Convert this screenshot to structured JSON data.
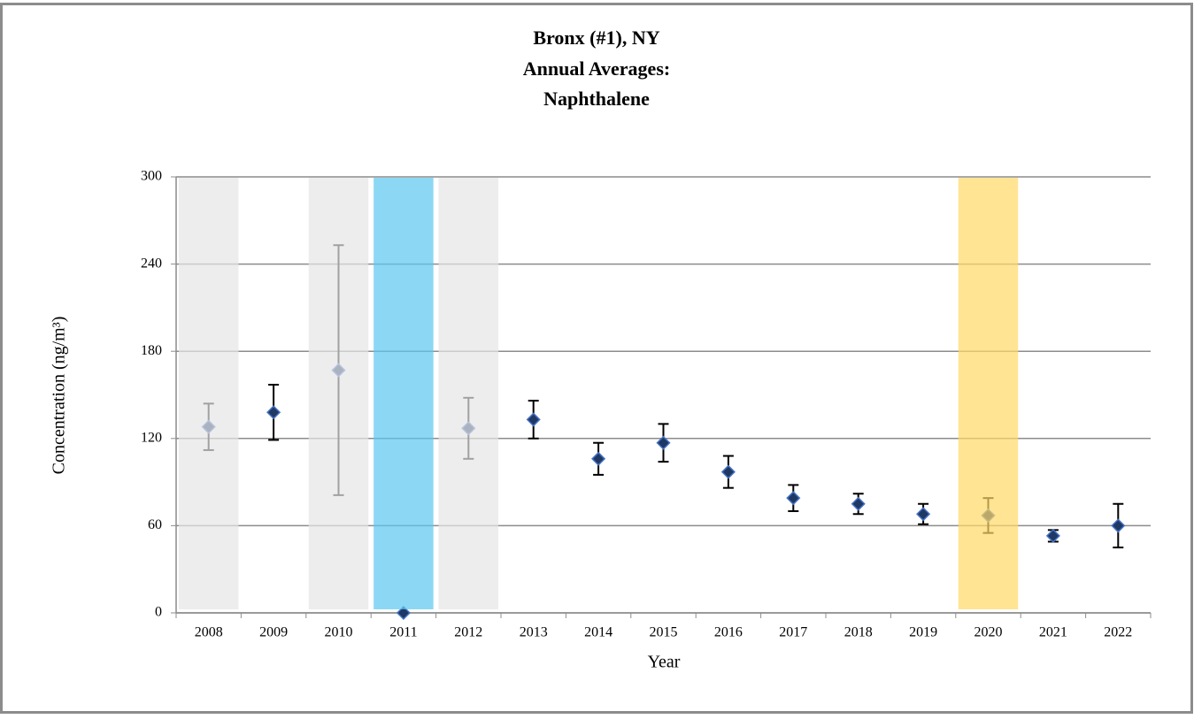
{
  "chart_data": {
    "type": "scatter",
    "title": [
      "Bronx (#1), NY",
      "Annual Averages:",
      "Naphthalene"
    ],
    "x_label": "Year",
    "y_label": "Concentration (ng/m³)",
    "categories": [
      "2008",
      "2009",
      "2010",
      "2011",
      "2012",
      "2013",
      "2014",
      "2015",
      "2016",
      "2017",
      "2018",
      "2019",
      "2020",
      "2021",
      "2022"
    ],
    "values": [
      128,
      138,
      167,
      0,
      127,
      133,
      106,
      117,
      97,
      79,
      75,
      68,
      67,
      53,
      60
    ],
    "errors": [
      16,
      19,
      86,
      null,
      21,
      13,
      11,
      13,
      11,
      9,
      7,
      7,
      12,
      4,
      15
    ],
    "color": "#1f3864",
    "edge_color": "#4472c4",
    "error_color": "#000000",
    "band_colors": [
      "#e6e6e6",
      null,
      "#e6e6e6",
      "#5bc8f0",
      "#e6e6e6",
      null,
      null,
      null,
      null,
      null,
      null,
      null,
      "#ffd966",
      null,
      null
    ],
    "ylim": [
      0,
      300
    ],
    "yticks": [
      0,
      60,
      120,
      180,
      240,
      300
    ],
    "grid": true
  }
}
